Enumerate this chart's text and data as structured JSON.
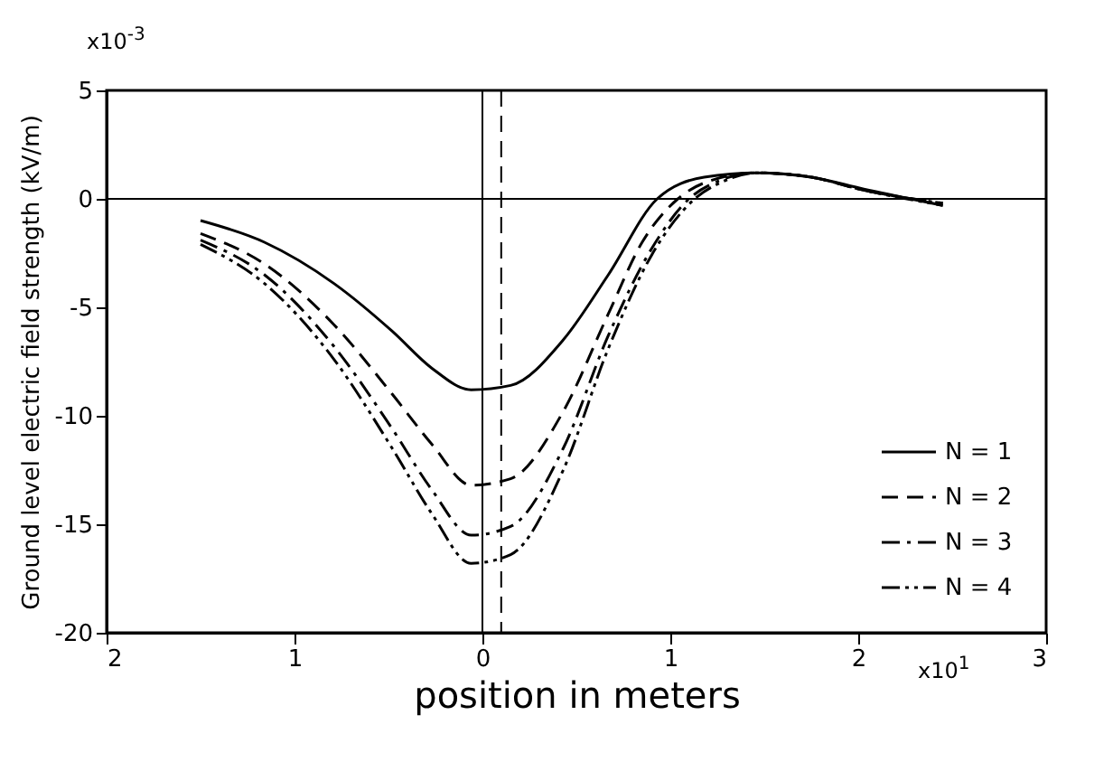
{
  "chart_data": {
    "type": "line",
    "xlabel": "position in meters",
    "ylabel": "Ground level electric field strength (kV/m)",
    "annotations": [
      "x10$^{-3}$",
      "x10$^{1}$"
    ],
    "xlim": [
      -2,
      3
    ],
    "xticks": [
      {
        "value": -2,
        "label": "2"
      },
      {
        "value": -1,
        "label": "1"
      },
      0,
      1,
      2,
      3
    ],
    "ylim": [
      -20,
      5
    ],
    "yticks": [
      5,
      0,
      -5,
      -10,
      -15,
      -20
    ],
    "grid": false,
    "legend": "bottom right",
    "marker": "none",
    "ref_lines": [
      {
        "axis": "x",
        "value": 0,
        "line_style": "solid"
      },
      {
        "axis": "x",
        "value": 0.1,
        "line_style": "dashed"
      },
      {
        "axis": "y",
        "value": 0,
        "line_style": "solid"
      }
    ],
    "x": [
      -1.5,
      -1.16,
      -0.79,
      -0.48,
      -0.27,
      -0.06,
      0.15,
      0.43,
      0.67,
      0.9,
      1.1,
      1.25,
      1.46,
      1.75,
      2.03,
      2.45
    ],
    "series": [
      {
        "name": "N = 1",
        "color": "#000000",
        "line_style": "solid",
        "x": [
          -1.5,
          -1.16,
          -0.79,
          -0.48,
          -0.27,
          -0.06,
          0.15,
          0.43,
          0.67,
          0.93,
          1.18,
          1.46,
          1.75,
          2.03,
          2.45
        ],
        "values": [
          -1.0,
          -2.0,
          -3.9,
          -6.1,
          -7.8,
          -8.8,
          -8.6,
          -6.5,
          -3.5,
          0,
          1.0,
          1.2,
          1.0,
          0.45,
          -0.3
        ]
      },
      {
        "name": "N = 2",
        "color": "#000000",
        "line_style": "dashed",
        "x": [
          -1.5,
          -1.16,
          -0.79,
          -0.48,
          -0.27,
          -0.06,
          0.15,
          0.43,
          0.67,
          0.85,
          1.04,
          1.2,
          1.46,
          1.75,
          2.03,
          2.45
        ],
        "values": [
          -1.6,
          -3.0,
          -5.8,
          -9.0,
          -11.3,
          -13.2,
          -12.9,
          -9.8,
          -5.3,
          -2.0,
          0,
          0.8,
          1.2,
          1.0,
          0.4,
          -0.2
        ]
      },
      {
        "name": "N = 3",
        "color": "#000000",
        "line_style": "dashdot",
        "values": [
          -1.9,
          -3.5,
          -6.8,
          -10.6,
          -13.4,
          -15.5,
          -15.1,
          -11.5,
          -6.3,
          -2.3,
          0,
          0.8,
          1.2,
          1.0,
          0.4,
          -0.2
        ]
      },
      {
        "name": "N = 4",
        "color": "#000000",
        "line_style": "dashdotdot",
        "x": [
          -1.5,
          -1.16,
          -0.79,
          -0.48,
          -0.27,
          -0.06,
          0.15,
          0.43,
          0.67,
          0.9,
          1.13,
          1.28,
          1.46,
          1.75,
          2.03,
          2.45
        ],
        "values": [
          -2.1,
          -3.9,
          -7.4,
          -11.5,
          -14.5,
          -16.8,
          -16.4,
          -12.5,
          -6.9,
          -2.6,
          0,
          0.8,
          1.2,
          1.0,
          0.4,
          -0.3
        ]
      }
    ]
  }
}
